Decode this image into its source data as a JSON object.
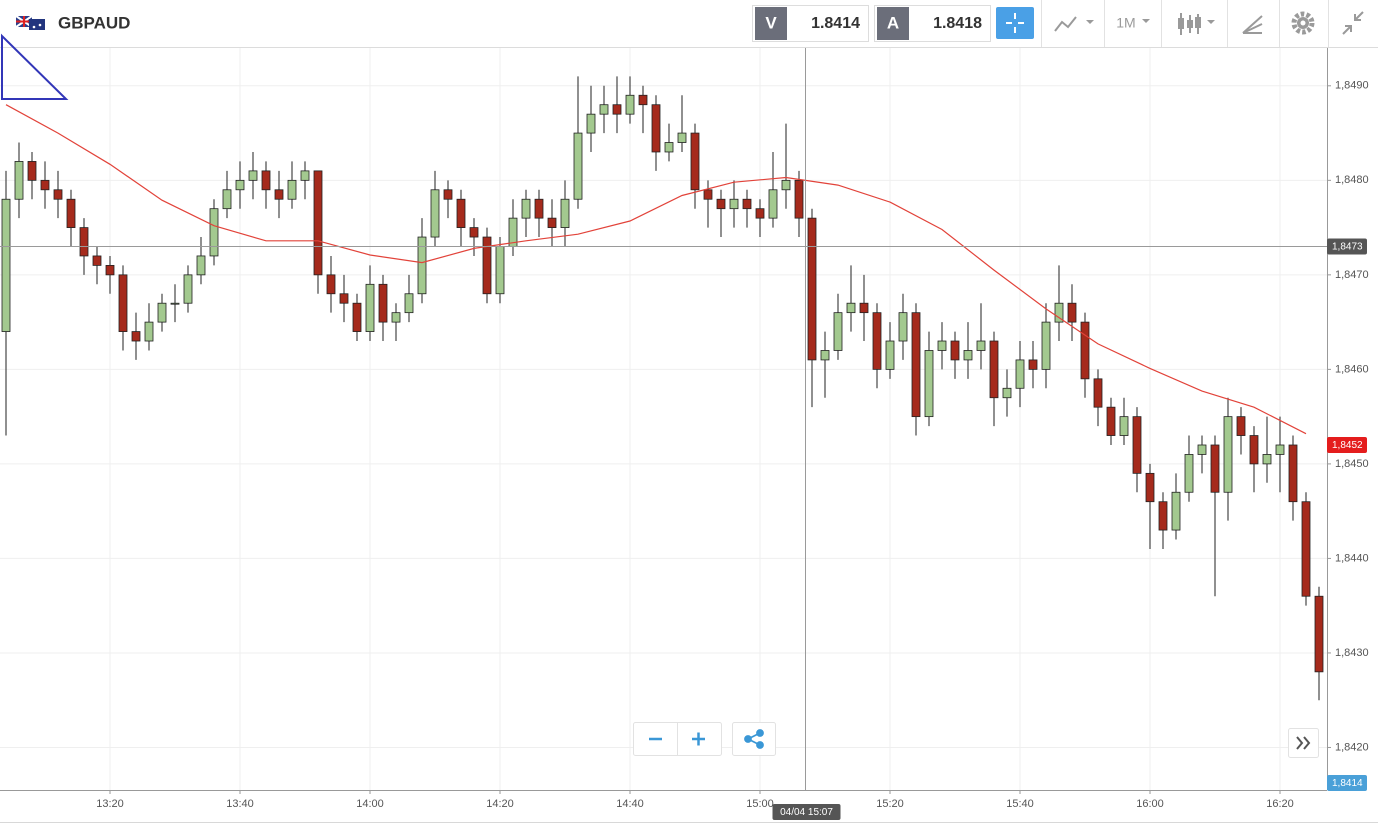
{
  "header": {
    "symbol": "GBPAUD",
    "bid_label": "V",
    "bid": 1.8414,
    "ask_label": "A",
    "ask": 1.8418,
    "timeframe": "1M"
  },
  "chart_data": {
    "type": "candlestick",
    "x": [
      "13:04",
      "13:06",
      "13:08",
      "13:10",
      "13:12",
      "13:14",
      "13:16",
      "13:18",
      "13:20",
      "13:22",
      "13:24",
      "13:26",
      "13:28",
      "13:30",
      "13:32",
      "13:34",
      "13:36",
      "13:38",
      "13:40",
      "13:42",
      "13:44",
      "13:46",
      "13:48",
      "13:50",
      "13:52",
      "13:54",
      "13:56",
      "13:58",
      "14:00",
      "14:02",
      "14:04",
      "14:06",
      "14:08",
      "14:10",
      "14:12",
      "14:14",
      "14:16",
      "14:18",
      "14:20",
      "14:22",
      "14:24",
      "14:26",
      "14:28",
      "14:30",
      "14:32",
      "14:34",
      "14:36",
      "14:38",
      "14:40",
      "14:42",
      "14:44",
      "14:46",
      "14:48",
      "14:50",
      "14:52",
      "14:54",
      "14:56",
      "14:58",
      "15:00",
      "15:02",
      "15:04",
      "15:06",
      "15:08",
      "15:10",
      "15:12",
      "15:14",
      "15:16",
      "15:18",
      "15:20",
      "15:22",
      "15:24",
      "15:26",
      "15:28",
      "15:30",
      "15:32",
      "15:34",
      "15:36",
      "15:38",
      "15:40",
      "15:42",
      "15:44",
      "15:46",
      "15:48",
      "15:50",
      "15:52",
      "15:54",
      "15:56",
      "15:58",
      "16:00",
      "16:02",
      "16:04",
      "16:06",
      "16:08",
      "16:10",
      "16:12",
      "16:14",
      "16:16",
      "16:18",
      "16:20",
      "16:22",
      "16:24",
      "16:26"
    ],
    "open": [
      1.8464,
      1.8478,
      1.8482,
      1.848,
      1.8479,
      1.8478,
      1.8475,
      1.8472,
      1.8471,
      1.847,
      1.8464,
      1.8463,
      1.8465,
      1.8467,
      1.8467,
      1.847,
      1.8472,
      1.8477,
      1.8479,
      1.848,
      1.8481,
      1.8479,
      1.8478,
      1.848,
      1.8481,
      1.847,
      1.8468,
      1.8467,
      1.8464,
      1.8469,
      1.8465,
      1.8466,
      1.8468,
      1.8474,
      1.8479,
      1.8478,
      1.8475,
      1.8474,
      1.8468,
      1.8473,
      1.8476,
      1.8478,
      1.8476,
      1.8475,
      1.8478,
      1.8485,
      1.8487,
      1.8488,
      1.8487,
      1.8489,
      1.8488,
      1.8483,
      1.8484,
      1.8485,
      1.8479,
      1.8478,
      1.8477,
      1.8478,
      1.8477,
      1.8476,
      1.8479,
      1.848,
      1.8476,
      1.8461,
      1.8462,
      1.8466,
      1.8467,
      1.8466,
      1.846,
      1.8463,
      1.8466,
      1.8455,
      1.8462,
      1.8463,
      1.8461,
      1.8462,
      1.8463,
      1.8457,
      1.8458,
      1.8461,
      1.846,
      1.8465,
      1.8467,
      1.8465,
      1.8459,
      1.8456,
      1.8453,
      1.8455,
      1.8449,
      1.8446,
      1.8443,
      1.8447,
      1.8451,
      1.8452,
      1.8447,
      1.8455,
      1.8453,
      1.845,
      1.8451,
      1.8452,
      1.8446,
      1.8436
    ],
    "high": [
      1.8481,
      1.8484,
      1.8483,
      1.8482,
      1.8481,
      1.8479,
      1.8476,
      1.8473,
      1.8472,
      1.8471,
      1.8466,
      1.8467,
      1.8468,
      1.8469,
      1.8471,
      1.8474,
      1.8478,
      1.8481,
      1.8482,
      1.8483,
      1.8482,
      1.8481,
      1.8482,
      1.8482,
      1.8481,
      1.8472,
      1.847,
      1.8468,
      1.8471,
      1.847,
      1.8467,
      1.847,
      1.8476,
      1.8481,
      1.848,
      1.8479,
      1.8476,
      1.8475,
      1.8474,
      1.8478,
      1.8479,
      1.8479,
      1.8478,
      1.848,
      1.8491,
      1.849,
      1.849,
      1.8491,
      1.8491,
      1.849,
      1.8489,
      1.8486,
      1.8489,
      1.8486,
      1.848,
      1.8479,
      1.848,
      1.8479,
      1.8478,
      1.8483,
      1.8486,
      1.8481,
      1.8477,
      1.8464,
      1.8468,
      1.8471,
      1.847,
      1.8467,
      1.8465,
      1.8468,
      1.8467,
      1.8464,
      1.8465,
      1.8464,
      1.8465,
      1.8467,
      1.8464,
      1.846,
      1.8463,
      1.8463,
      1.8467,
      1.8471,
      1.8469,
      1.8466,
      1.846,
      1.8457,
      1.8457,
      1.8456,
      1.845,
      1.8447,
      1.8449,
      1.8453,
      1.8453,
      1.8453,
      1.8457,
      1.8456,
      1.8454,
      1.8455,
      1.8455,
      1.8453,
      1.8447,
      1.8437
    ],
    "low": [
      1.8453,
      1.8476,
      1.8478,
      1.8477,
      1.8476,
      1.8473,
      1.847,
      1.8469,
      1.8468,
      1.8462,
      1.8461,
      1.8462,
      1.8464,
      1.8465,
      1.8466,
      1.8469,
      1.8471,
      1.8476,
      1.8477,
      1.8478,
      1.8477,
      1.8476,
      1.8477,
      1.8478,
      1.8468,
      1.8466,
      1.8465,
      1.8463,
      1.8463,
      1.8463,
      1.8463,
      1.8465,
      1.8467,
      1.8473,
      1.8476,
      1.8473,
      1.8472,
      1.8467,
      1.8467,
      1.8472,
      1.8474,
      1.8474,
      1.8473,
      1.8473,
      1.8477,
      1.8483,
      1.8485,
      1.8485,
      1.8486,
      1.8485,
      1.8481,
      1.8482,
      1.8483,
      1.8477,
      1.8475,
      1.8474,
      1.8475,
      1.8475,
      1.8474,
      1.8475,
      1.8477,
      1.8474,
      1.8456,
      1.8457,
      1.8461,
      1.8464,
      1.8463,
      1.8458,
      1.8459,
      1.8461,
      1.8453,
      1.8454,
      1.846,
      1.8459,
      1.8459,
      1.846,
      1.8454,
      1.8455,
      1.8456,
      1.8458,
      1.8458,
      1.8463,
      1.8463,
      1.8457,
      1.8454,
      1.8452,
      1.8452,
      1.8447,
      1.8441,
      1.8441,
      1.8442,
      1.8446,
      1.8449,
      1.8436,
      1.8444,
      1.8451,
      1.8447,
      1.8448,
      1.8447,
      1.8444,
      1.8435,
      1.8425
    ],
    "close": [
      1.8478,
      1.8482,
      1.848,
      1.8479,
      1.8478,
      1.8475,
      1.8472,
      1.8471,
      1.847,
      1.8464,
      1.8463,
      1.8465,
      1.8467,
      1.8467,
      1.847,
      1.8472,
      1.8477,
      1.8479,
      1.848,
      1.8481,
      1.8479,
      1.8478,
      1.848,
      1.8481,
      1.847,
      1.8468,
      1.8467,
      1.8464,
      1.8469,
      1.8465,
      1.8466,
      1.8468,
      1.8474,
      1.8479,
      1.8478,
      1.8475,
      1.8474,
      1.8468,
      1.8473,
      1.8476,
      1.8478,
      1.8476,
      1.8475,
      1.8478,
      1.8485,
      1.8487,
      1.8488,
      1.8487,
      1.8489,
      1.8488,
      1.8483,
      1.8484,
      1.8485,
      1.8479,
      1.8478,
      1.8477,
      1.8478,
      1.8477,
      1.8476,
      1.8479,
      1.848,
      1.8476,
      1.8461,
      1.8462,
      1.8466,
      1.8467,
      1.8466,
      1.846,
      1.8463,
      1.8466,
      1.8455,
      1.8462,
      1.8463,
      1.8461,
      1.8462,
      1.8463,
      1.8457,
      1.8458,
      1.8461,
      1.846,
      1.8465,
      1.8467,
      1.8465,
      1.8459,
      1.8456,
      1.8453,
      1.8455,
      1.8449,
      1.8446,
      1.8443,
      1.8447,
      1.8451,
      1.8452,
      1.8447,
      1.8455,
      1.8453,
      1.845,
      1.8451,
      1.8452,
      1.8446,
      1.8436,
      1.8428
    ],
    "up_color": "#a3c98f",
    "down_color": "#a52a1c",
    "ma": {
      "color": "#e2433a",
      "x": [
        "13:04",
        "13:12",
        "13:20",
        "13:28",
        "13:36",
        "13:44",
        "13:52",
        "14:00",
        "14:08",
        "14:16",
        "14:24",
        "14:32",
        "14:40",
        "14:48",
        "14:56",
        "15:04",
        "15:12",
        "15:20",
        "15:28",
        "15:36",
        "15:44",
        "15:52",
        "16:00",
        "16:08",
        "16:16",
        "16:24"
      ],
      "values": [
        1.8488,
        1.8485,
        1.84817,
        1.84779,
        1.84752,
        1.84736,
        1.84736,
        1.84721,
        1.84713,
        1.84728,
        1.84736,
        1.84743,
        1.84757,
        1.84784,
        1.84798,
        1.84803,
        1.84795,
        1.84777,
        1.84748,
        1.84705,
        1.84664,
        1.84627,
        1.84601,
        1.84577,
        1.8456,
        1.84532
      ]
    },
    "ma_label": {
      "value": 1.8452,
      "label": "1,8452"
    },
    "bid_line": {
      "value": 1.8414,
      "label": "1,8414"
    },
    "crosshair": {
      "time": "15:07",
      "label": "04/04 15:07",
      "price": {
        "value": 1.8473,
        "label": "1,8473"
      }
    },
    "ylim": [
      1.84155,
      1.8494
    ],
    "yticks": [
      {
        "value": 1.842,
        "label": "1,8420"
      },
      {
        "value": 1.843,
        "label": "1,8430"
      },
      {
        "value": 1.844,
        "label": "1,8440"
      },
      {
        "value": 1.845,
        "label": "1,8450"
      },
      {
        "value": 1.846,
        "label": "1,8460"
      },
      {
        "value": 1.847,
        "label": "1,8470"
      },
      {
        "value": 1.848,
        "label": "1,8480"
      },
      {
        "value": 1.849,
        "label": "1,8490"
      }
    ],
    "xticks": [
      "13:20",
      "13:40",
      "14:00",
      "14:20",
      "14:40",
      "15:00",
      "15:20",
      "15:40",
      "16:00",
      "16:20"
    ],
    "grid": true
  }
}
